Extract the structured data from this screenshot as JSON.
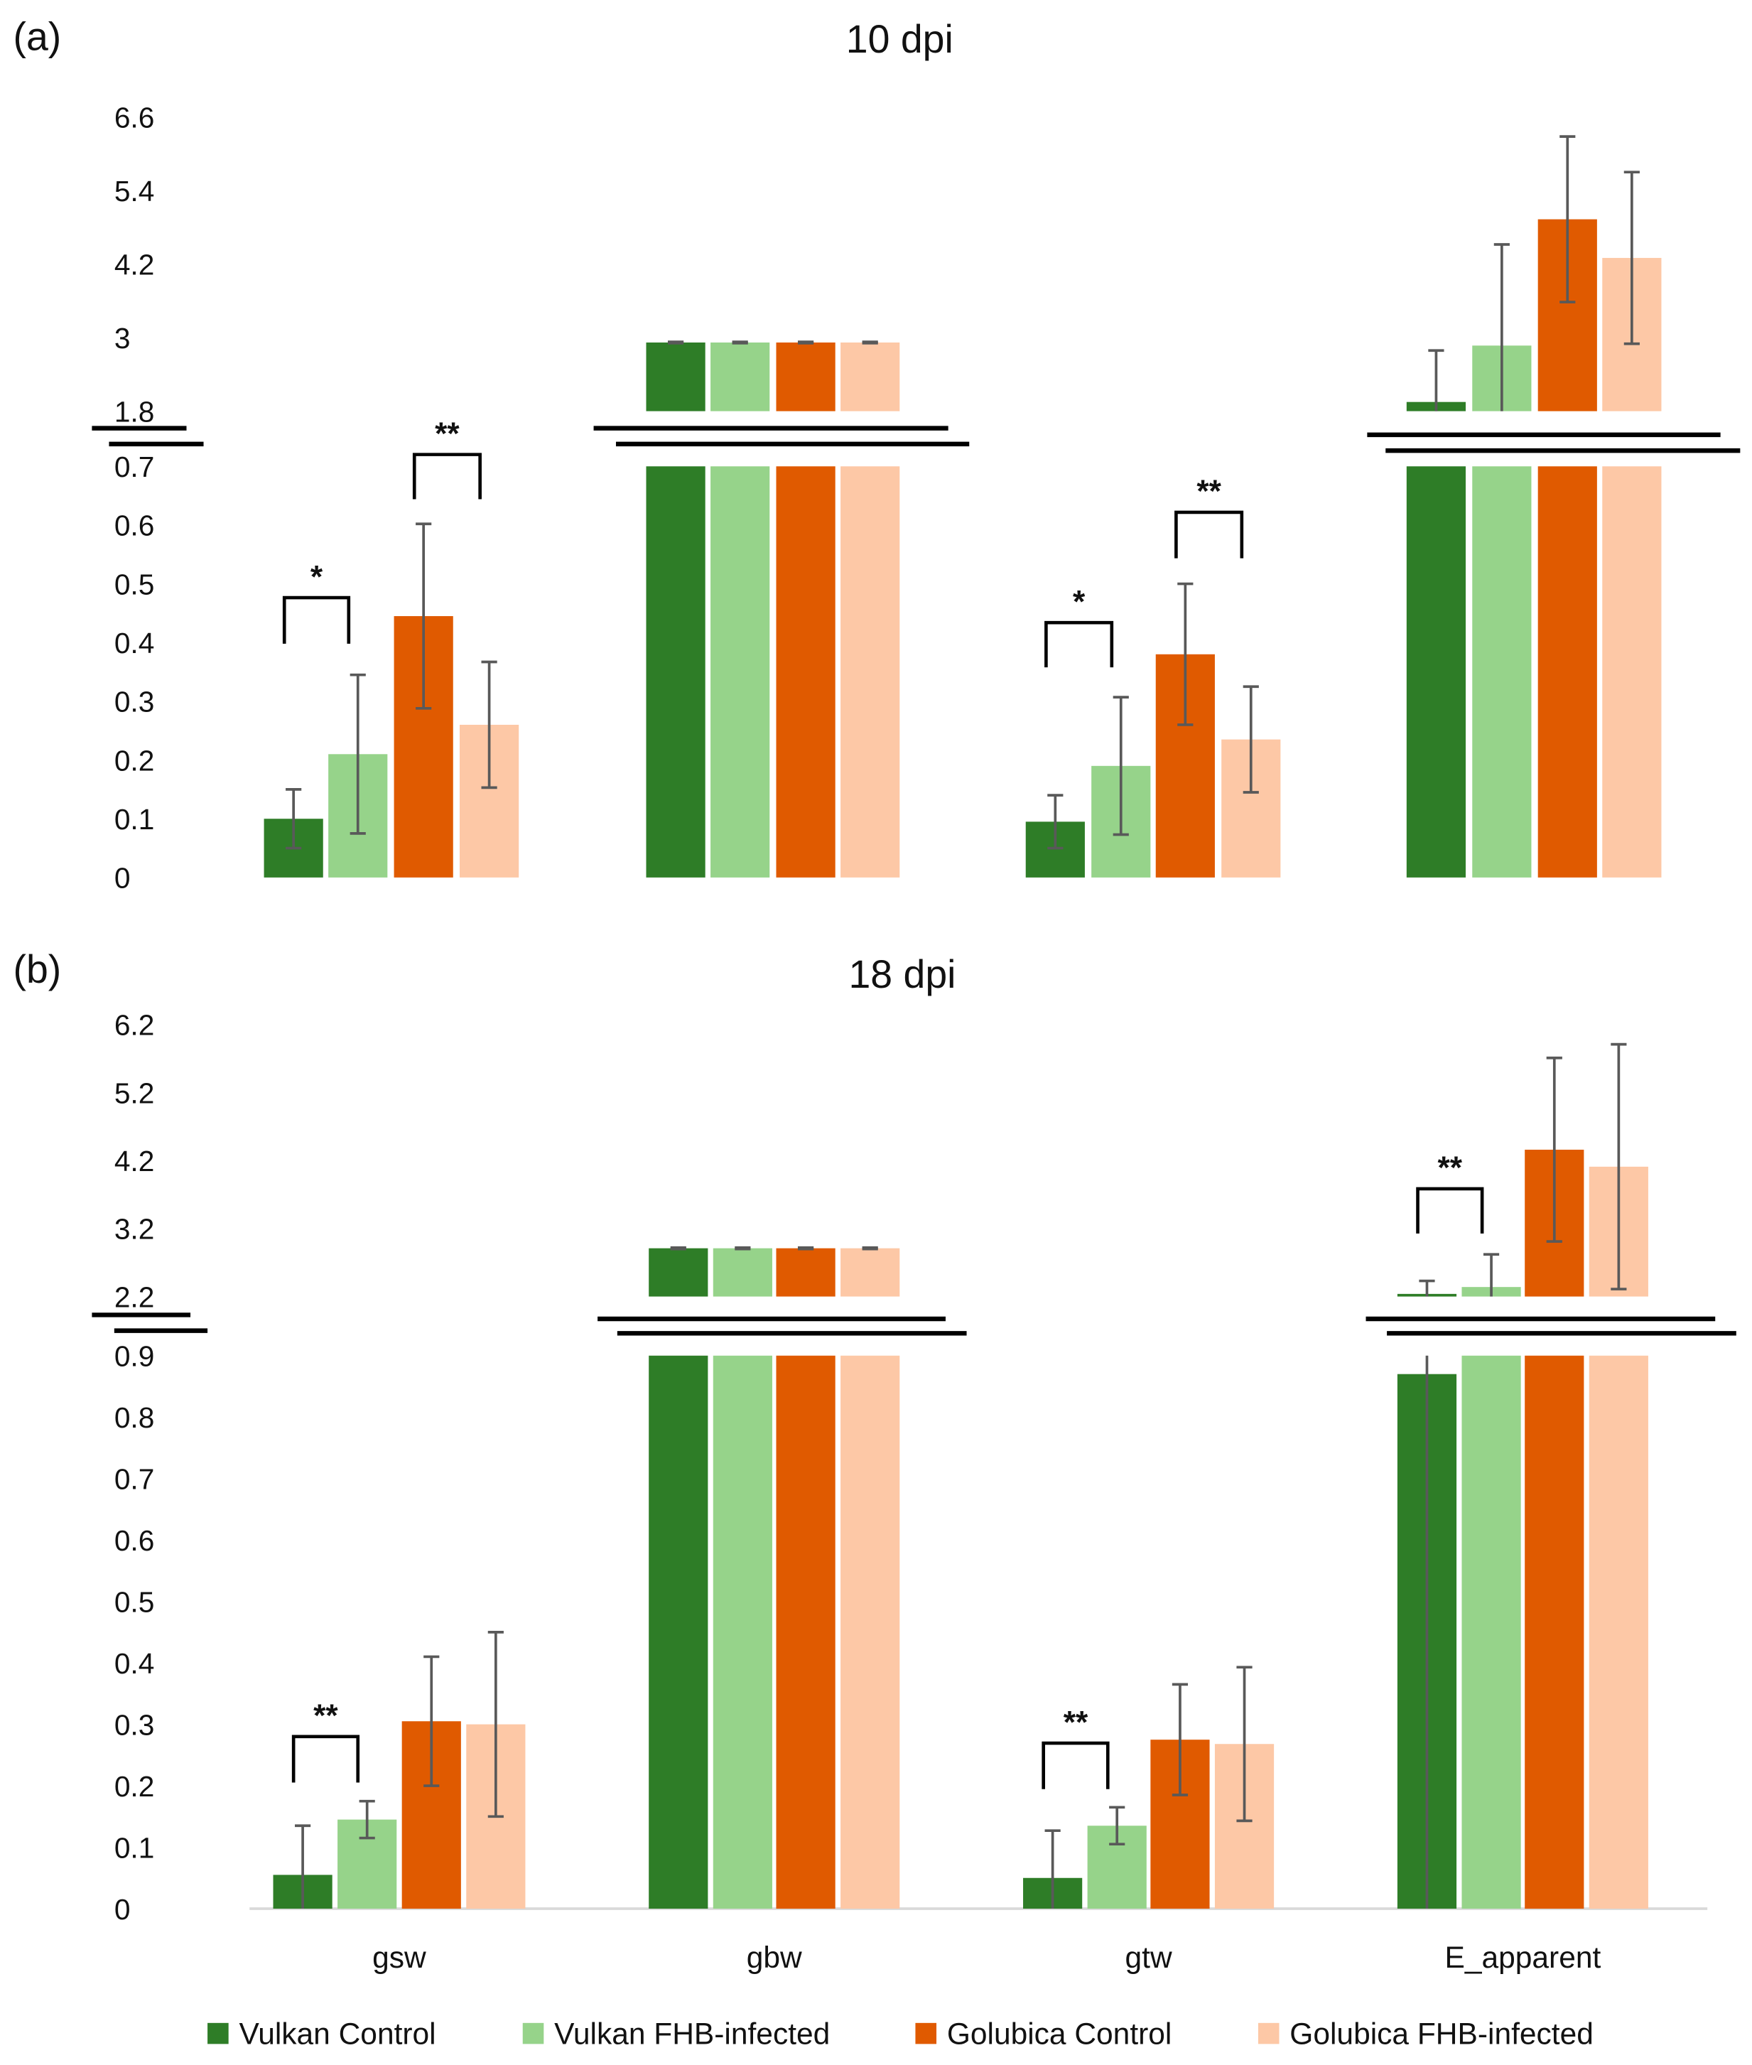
{
  "chart_data": [
    {
      "type": "bar",
      "panel_label": "(a)",
      "title": "10 dpi",
      "categories": [
        "gsw",
        "gbw",
        "gtw",
        "E_apparent"
      ],
      "axis": {
        "broken": true,
        "lower_range": [
          0,
          0.7
        ],
        "lower_ticks": [
          "0",
          "0.1",
          "0.2",
          "0.3",
          "0.4",
          "0.5",
          "0.6",
          "0.7"
        ],
        "upper_range": [
          1.8,
          6.6
        ],
        "upper_ticks": [
          "1.8",
          "3",
          "4.2",
          "5.4",
          "6.6"
        ]
      },
      "series": [
        {
          "name": "Vulkan Control",
          "color": "#2e7d27",
          "values": [
            0.1,
            2.92,
            0.095,
            1.95
          ],
          "errors": [
            0.05,
            0.01,
            0.045,
            0.84
          ]
        },
        {
          "name": "Vulkan FHB-infected",
          "color": "#96d38a",
          "values": [
            0.21,
            2.92,
            0.19,
            2.87
          ],
          "errors": [
            0.135,
            0.01,
            0.117,
            1.65
          ]
        },
        {
          "name": "Golubica Control",
          "color": "#e05a00",
          "values": [
            0.445,
            2.92,
            0.38,
            4.93
          ],
          "errors": [
            0.157,
            0.01,
            0.12,
            1.35
          ]
        },
        {
          "name": "Golubica FHB-infected",
          "color": "#fdc8a6",
          "values": [
            0.26,
            2.92,
            0.235,
            4.3
          ],
          "errors": [
            0.107,
            0.01,
            0.09,
            1.4
          ]
        }
      ],
      "significance": [
        {
          "category": "gsw",
          "between": [
            "Vulkan Control",
            "Vulkan FHB-infected"
          ],
          "label": "*"
        },
        {
          "category": "gsw",
          "between": [
            "Golubica Control",
            "Golubica FHB-infected"
          ],
          "label": "**"
        },
        {
          "category": "gtw",
          "between": [
            "Vulkan Control",
            "Vulkan FHB-infected"
          ],
          "label": "*"
        },
        {
          "category": "gtw",
          "between": [
            "Golubica Control",
            "Golubica FHB-infected"
          ],
          "label": "**"
        }
      ],
      "grid": false
    },
    {
      "type": "bar",
      "panel_label": "(b)",
      "title": "18 dpi",
      "categories": [
        "gsw",
        "gbw",
        "gtw",
        "E_apparent"
      ],
      "axis": {
        "broken": true,
        "lower_range": [
          0,
          0.9
        ],
        "lower_ticks": [
          "0",
          "0.1",
          "0.2",
          "0.3",
          "0.4",
          "0.5",
          "0.6",
          "0.7",
          "0.8",
          "0.9"
        ],
        "upper_range": [
          2.2,
          6.2
        ],
        "upper_ticks": [
          "2.2",
          "3.2",
          "4.2",
          "5.2",
          "6.2"
        ]
      },
      "series": [
        {
          "name": "Vulkan Control",
          "color": "#2e7d27",
          "values": [
            0.055,
            2.91,
            0.05,
            0.87
          ],
          "errors": [
            0.08,
            0.01,
            0.077,
            1.56
          ]
        },
        {
          "name": "Vulkan FHB-infected",
          "color": "#96d38a",
          "values": [
            0.145,
            2.91,
            0.135,
            2.34
          ],
          "errors": [
            0.03,
            0.01,
            0.03,
            0.48
          ]
        },
        {
          "name": "Golubica Control",
          "color": "#e05a00",
          "values": [
            0.305,
            2.91,
            0.275,
            4.36
          ],
          "errors": [
            0.105,
            0.01,
            0.09,
            1.35
          ]
        },
        {
          "name": "Golubica FHB-infected",
          "color": "#fdc8a6",
          "values": [
            0.3,
            2.91,
            0.268,
            4.11
          ],
          "errors": [
            0.15,
            0.01,
            0.125,
            1.8
          ]
        }
      ],
      "significance": [
        {
          "category": "gsw",
          "between": [
            "Vulkan Control",
            "Vulkan FHB-infected"
          ],
          "label": "**"
        },
        {
          "category": "gtw",
          "between": [
            "Vulkan Control",
            "Vulkan FHB-infected"
          ],
          "label": "**"
        },
        {
          "category": "E_apparent",
          "between": [
            "Vulkan Control",
            "Vulkan FHB-infected"
          ],
          "label": "**"
        }
      ],
      "grid": false
    }
  ],
  "legend": {
    "position": "bottom",
    "items": [
      "Vulkan Control",
      "Vulkan FHB-infected",
      "Golubica Control",
      "Golubica FHB-infected"
    ]
  }
}
